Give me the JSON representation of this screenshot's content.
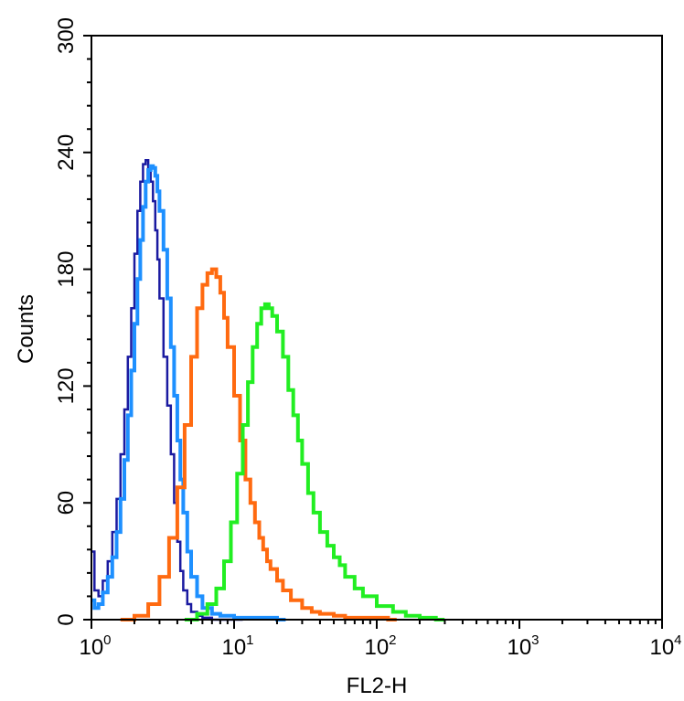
{
  "chart_data": {
    "type": "line",
    "xlabel": "FL2-H",
    "ylabel": "Counts",
    "xscale": "log",
    "xlim": [
      1,
      10000
    ],
    "ylim": [
      0,
      300
    ],
    "x_tick_labels": [
      {
        "base": "10",
        "exp": "0",
        "value": 1
      },
      {
        "base": "10",
        "exp": "1",
        "value": 10
      },
      {
        "base": "10",
        "exp": "2",
        "value": 100
      },
      {
        "base": "10",
        "exp": "3",
        "value": 1000
      },
      {
        "base": "10",
        "exp": "4",
        "value": 10000
      }
    ],
    "y_ticks": [
      "0",
      "60",
      "120",
      "180",
      "240",
      "300"
    ],
    "grid": false,
    "legend": "none",
    "series": [
      {
        "color": "#1a1aa0",
        "x": [
          1.0,
          1.05,
          1.12,
          1.2,
          1.3,
          1.4,
          1.5,
          1.6,
          1.7,
          1.8,
          1.9,
          2.0,
          2.1,
          2.2,
          2.3,
          2.4,
          2.5,
          2.6,
          2.7,
          2.8,
          2.9,
          3.0,
          3.2,
          3.4,
          3.6,
          3.8,
          4.0,
          4.2,
          4.4,
          4.7,
          5.0,
          5.5,
          6.0,
          7.0,
          8.0,
          10.0
        ],
        "y": [
          35,
          15,
          12,
          20,
          30,
          45,
          62,
          85,
          108,
          135,
          160,
          188,
          210,
          225,
          234,
          236,
          232,
          225,
          215,
          200,
          185,
          165,
          135,
          110,
          85,
          60,
          40,
          25,
          15,
          8,
          4,
          2,
          1,
          0,
          0,
          0
        ]
      },
      {
        "color": "#1e90ff",
        "x": [
          1.0,
          1.05,
          1.12,
          1.2,
          1.3,
          1.4,
          1.5,
          1.6,
          1.7,
          1.8,
          1.9,
          2.0,
          2.1,
          2.2,
          2.3,
          2.4,
          2.5,
          2.6,
          2.7,
          2.8,
          2.9,
          3.0,
          3.2,
          3.4,
          3.6,
          3.8,
          4.0,
          4.2,
          4.4,
          4.7,
          5.0,
          5.5,
          6.0,
          7.0,
          8.0,
          10.0,
          14.0,
          20.0
        ],
        "y": [
          10,
          6,
          8,
          14,
          22,
          32,
          45,
          62,
          82,
          105,
          128,
          152,
          175,
          195,
          212,
          225,
          231,
          233,
          232,
          228,
          220,
          210,
          190,
          165,
          140,
          115,
          92,
          72,
          55,
          35,
          22,
          12,
          6,
          3,
          2,
          1,
          1,
          0
        ]
      },
      {
        "color": "#ff6a10",
        "x": [
          1.6,
          2.0,
          2.5,
          3.0,
          3.5,
          4.0,
          4.5,
          5.0,
          5.5,
          6.0,
          6.5,
          7.0,
          7.5,
          8.0,
          8.5,
          9.0,
          10.0,
          11.0,
          12.0,
          13.0,
          14.0,
          15.0,
          16.0,
          17.0,
          18.0,
          20.0,
          22.0,
          25.0,
          30.0,
          35.0,
          40.0,
          50.0,
          60.0,
          80.0,
          120.0
        ],
        "y": [
          0,
          2,
          8,
          22,
          42,
          68,
          100,
          135,
          160,
          172,
          178,
          180,
          176,
          168,
          155,
          140,
          115,
          92,
          72,
          60,
          50,
          42,
          36,
          30,
          26,
          20,
          15,
          10,
          6,
          4,
          3,
          2,
          1,
          1,
          0
        ]
      },
      {
        "color": "#22ee22",
        "x": [
          4.5,
          5.5,
          6.5,
          7.5,
          8.5,
          9.5,
          10.5,
          11.5,
          12.5,
          13.5,
          14.5,
          15.5,
          16.5,
          17.5,
          18.5,
          20.0,
          22.0,
          24.0,
          26.0,
          28.0,
          30.0,
          33.0,
          36.0,
          40.0,
          45.0,
          50.0,
          55.0,
          60.0,
          70.0,
          80.0,
          100.0,
          130.0,
          160.0,
          200.0,
          260.0
        ],
        "y": [
          0,
          3,
          8,
          16,
          30,
          50,
          75,
          100,
          122,
          140,
          152,
          160,
          162,
          160,
          156,
          148,
          135,
          118,
          105,
          92,
          80,
          65,
          55,
          45,
          38,
          32,
          28,
          22,
          16,
          12,
          7,
          4,
          2,
          1,
          0
        ]
      }
    ]
  }
}
